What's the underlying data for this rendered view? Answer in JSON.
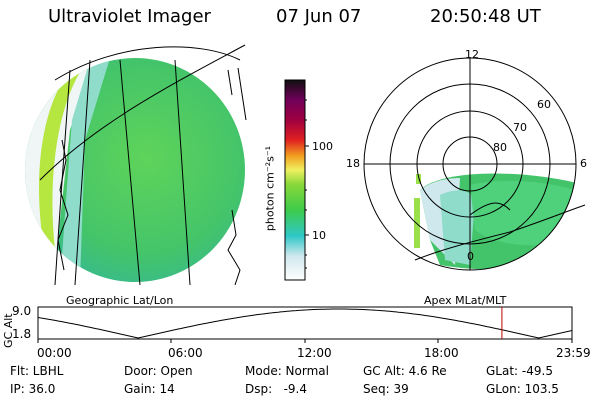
{
  "header": {
    "instrument": "Ultraviolet Imager",
    "date": "07 Jun 07",
    "time": "20:50:48 UT"
  },
  "colorbar": {
    "unit_label": "photon cm⁻²s⁻¹",
    "ticks": [
      "100",
      "10"
    ]
  },
  "panels": {
    "left_caption": "Geographic Lat/Lon",
    "right_caption": "Apex MLat/MLT"
  },
  "polar": {
    "mlt_labels": {
      "top": "12",
      "left": "18",
      "right": "6",
      "bottom": "0"
    },
    "lat_labels": [
      "60",
      "70",
      "80"
    ]
  },
  "altitude_plot": {
    "ylabel": "GC Alt",
    "yticks": [
      "9.0",
      "1.8"
    ],
    "xticks": [
      "00:00",
      "06:00",
      "12:00",
      "18:00",
      "23:59"
    ],
    "current_time_marker_hours": 20.85,
    "curve_color": "#000000",
    "marker_color": "#c00000"
  },
  "status": {
    "flt": "Flt: LBHL",
    "door": "Door: Open",
    "mode": "Mode: Normal",
    "gc_alt": "GC Alt: 4.6 Re",
    "glat": "GLat: -49.5",
    "ip": "IP: 36.0",
    "gain": "Gain: 14",
    "dsp": "Dsp:   -9.4",
    "seq": "Seq: 39",
    "glon": "GLon: 103.5"
  }
}
